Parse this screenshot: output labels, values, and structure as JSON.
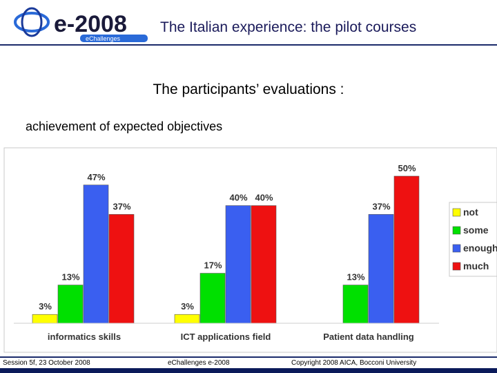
{
  "header": {
    "logo_text": "e-2008",
    "logo_subtext": "eChallenges",
    "title": "The Italian experience: the pilot courses"
  },
  "slide": {
    "subtitle": "The participants’ evaluations :",
    "caption": "achievement of expected objectives"
  },
  "footer": {
    "session": "Session 5f, 23 October 2008",
    "conference": "eChallenges e-2008",
    "copyright": "Copyright 2008  AICA, Bocconi University"
  },
  "colors": {
    "not": "#ffff00",
    "some": "#00e000",
    "enough": "#3a5ff0",
    "much": "#ee1111",
    "accent": "#1a2a6a"
  },
  "chart_data": {
    "type": "bar",
    "categories": [
      "informatics skills",
      "ICT applications field",
      "Patient data handling"
    ],
    "series": [
      {
        "name": "not",
        "values": [
          3,
          3,
          null
        ],
        "labels": [
          "3%",
          "3%",
          ""
        ]
      },
      {
        "name": "some",
        "values": [
          13,
          17,
          13
        ],
        "labels": [
          "13%",
          "17%",
          "13%"
        ]
      },
      {
        "name": "enough",
        "values": [
          47,
          40,
          37
        ],
        "labels": [
          "47%",
          "40%",
          "37%"
        ]
      },
      {
        "name": "much",
        "values": [
          37,
          40,
          50
        ],
        "labels": [
          "37%",
          "40%",
          "50%"
        ]
      }
    ],
    "legend": [
      "not",
      "some",
      "enough",
      "much"
    ],
    "legend_position": "right",
    "ylim": [
      0,
      50
    ],
    "grid": false
  }
}
